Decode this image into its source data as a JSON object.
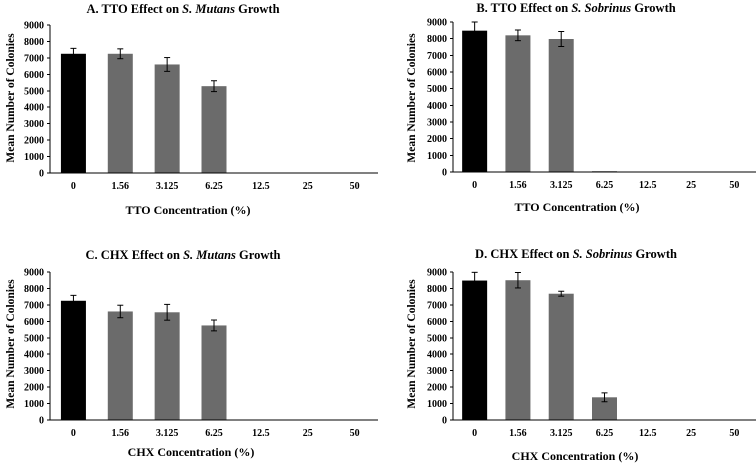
{
  "chart_data": [
    {
      "type": "bar",
      "panel": "A",
      "title_prefix": "A. TTO Effect on",
      "title_species": "S. Mutans",
      "title_suffix": "Growth",
      "xlabel": "TTO Concentration (%)",
      "ylabel": "Mean Number of Colonies",
      "categories": [
        "0",
        "1.56",
        "3.125",
        "6.25",
        "12.5",
        "25",
        "50"
      ],
      "values": [
        7250,
        7250,
        6600,
        5280,
        0,
        0,
        0
      ],
      "errors": [
        330,
        300,
        420,
        330,
        0,
        0,
        0
      ],
      "bar_colors": [
        "#000000",
        "#6b6b6b",
        "#6b6b6b",
        "#6b6b6b",
        "#6b6b6b",
        "#6b6b6b",
        "#6b6b6b"
      ],
      "ylim": [
        0,
        9000
      ],
      "yticks": [
        0,
        1000,
        2000,
        3000,
        4000,
        5000,
        6000,
        7000,
        8000,
        9000
      ],
      "grid": false
    },
    {
      "type": "bar",
      "panel": "B",
      "title_prefix": "B. TTO Effect on",
      "title_species": "S. Sobrinus",
      "title_suffix": "Growth",
      "xlabel": "TTO Concentration (%)",
      "ylabel": "Mean Number of Colonies",
      "categories": [
        "0",
        "1.56",
        "3.125",
        "6.25",
        "12.5",
        "25",
        "50"
      ],
      "values": [
        8480,
        8200,
        7980,
        20,
        0,
        0,
        0
      ],
      "errors": [
        520,
        320,
        450,
        0,
        0,
        0,
        0
      ],
      "bar_colors": [
        "#000000",
        "#6b6b6b",
        "#6b6b6b",
        "#6b6b6b",
        "#6b6b6b",
        "#6b6b6b",
        "#6b6b6b"
      ],
      "ylim": [
        0,
        9000
      ],
      "yticks": [
        0,
        1000,
        2000,
        3000,
        4000,
        5000,
        6000,
        7000,
        8000,
        9000
      ],
      "grid": false
    },
    {
      "type": "bar",
      "panel": "C",
      "title_prefix": "C. CHX Effect on",
      "title_species": "S. Mutans",
      "title_suffix": "Growth",
      "xlabel": "CHX Concentration (%)",
      "ylabel": "Mean Number of Colonies",
      "categories": [
        "0",
        "1.56",
        "3.125",
        "6.25",
        "12.5",
        "25",
        "50"
      ],
      "values": [
        7250,
        6600,
        6550,
        5750,
        0,
        0,
        0
      ],
      "errors": [
        330,
        380,
        480,
        330,
        0,
        0,
        0
      ],
      "bar_colors": [
        "#000000",
        "#6b6b6b",
        "#6b6b6b",
        "#6b6b6b",
        "#6b6b6b",
        "#6b6b6b",
        "#6b6b6b"
      ],
      "ylim": [
        0,
        9000
      ],
      "yticks": [
        0,
        1000,
        2000,
        3000,
        4000,
        5000,
        6000,
        7000,
        8000,
        9000
      ],
      "grid": false
    },
    {
      "type": "bar",
      "panel": "D",
      "title_prefix": "D. CHX Effect on",
      "title_species": "S. Sobrinus",
      "title_suffix": "Growth",
      "xlabel": "CHX Concentration (%)",
      "ylabel": "Mean Number of Colonies",
      "categories": [
        "0",
        "1.56",
        "3.125",
        "6.25",
        "12.5",
        "25",
        "50"
      ],
      "values": [
        8480,
        8500,
        7680,
        1380,
        0,
        0,
        0
      ],
      "errors": [
        500,
        470,
        150,
        270,
        0,
        0,
        0
      ],
      "bar_colors": [
        "#000000",
        "#6b6b6b",
        "#6b6b6b",
        "#6b6b6b",
        "#6b6b6b",
        "#6b6b6b",
        "#6b6b6b"
      ],
      "ylim": [
        0,
        9000
      ],
      "yticks": [
        0,
        1000,
        2000,
        3000,
        4000,
        5000,
        6000,
        7000,
        8000,
        9000
      ],
      "grid": false
    }
  ]
}
